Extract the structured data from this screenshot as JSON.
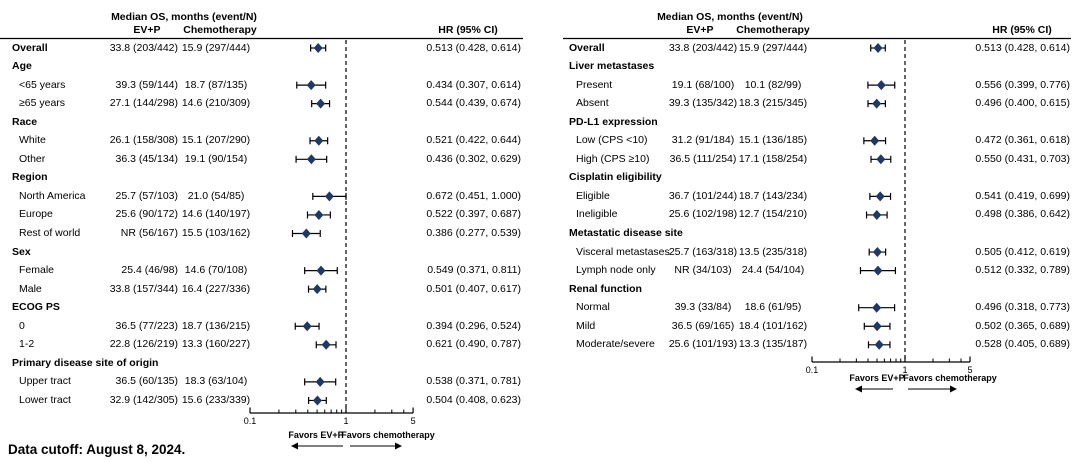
{
  "footer": {
    "data_cutoff": "Data cutoff: August 8, 2024."
  },
  "colors": {
    "marker": "#203864",
    "line": "#000000",
    "text": "#000000"
  },
  "chart_data": [
    {
      "type": "forest",
      "id": "left",
      "header": {
        "spanner": "Median OS, months (event/N)",
        "col_evp": "EV+P",
        "col_chemo": "Chemotherapy",
        "col_hr": "HR (95% CI)"
      },
      "axis": {
        "scale": "log",
        "min": 0.1,
        "max": 5,
        "ref_line": 1,
        "major_ticks": [
          0.1,
          1,
          5
        ],
        "tick_labels": [
          "0.1",
          "1",
          "5"
        ],
        "minor_ticks": [
          0.2,
          0.3,
          0.4,
          0.5,
          0.6,
          0.7,
          0.8,
          0.9,
          2,
          3,
          4
        ],
        "favors_left": "Favors EV+P",
        "favors_right": "Favors chemotherapy"
      },
      "rows": [
        {
          "kind": "overall",
          "label": "Overall",
          "evp": "33.8 (203/442)",
          "chemo": "15.9 (297/444)",
          "hr": 0.513,
          "lo": 0.428,
          "hi": 0.614,
          "hr_text": "0.513 (0.428, 0.614)"
        },
        {
          "kind": "group",
          "label": "Age"
        },
        {
          "kind": "item",
          "label": "<65 years",
          "evp": "39.3 (59/144)",
          "chemo": "18.7 (87/135)",
          "hr": 0.434,
          "lo": 0.307,
          "hi": 0.614,
          "hr_text": "0.434 (0.307, 0.614)"
        },
        {
          "kind": "item",
          "label": "≥65 years",
          "evp": "27.1 (144/298)",
          "chemo": "14.6 (210/309)",
          "hr": 0.544,
          "lo": 0.439,
          "hi": 0.674,
          "hr_text": "0.544 (0.439, 0.674)"
        },
        {
          "kind": "group",
          "label": "Race"
        },
        {
          "kind": "item",
          "label": "White",
          "evp": "26.1 (158/308)",
          "chemo": "15.1 (207/290)",
          "hr": 0.521,
          "lo": 0.422,
          "hi": 0.644,
          "hr_text": "0.521 (0.422, 0.644)"
        },
        {
          "kind": "item",
          "label": "Other",
          "evp": "36.3 (45/134)",
          "chemo": "19.1 (90/154)",
          "hr": 0.436,
          "lo": 0.302,
          "hi": 0.629,
          "hr_text": "0.436 (0.302, 0.629)"
        },
        {
          "kind": "group",
          "label": "Region"
        },
        {
          "kind": "item",
          "label": "North America",
          "evp": "25.7 (57/103)",
          "chemo": "21.0 (54/85)",
          "hr": 0.672,
          "lo": 0.451,
          "hi": 1.0,
          "hr_text": "0.672 (0.451, 1.000)"
        },
        {
          "kind": "item",
          "label": "Europe",
          "evp": "25.6 (90/172)",
          "chemo": "14.6 (140/197)",
          "hr": 0.522,
          "lo": 0.397,
          "hi": 0.687,
          "hr_text": "0.522 (0.397, 0.687)"
        },
        {
          "kind": "item",
          "label": "Rest of world",
          "evp": "NR (56/167)",
          "chemo": "15.5 (103/162)",
          "hr": 0.386,
          "lo": 0.277,
          "hi": 0.539,
          "hr_text": "0.386 (0.277, 0.539)"
        },
        {
          "kind": "group",
          "label": "Sex"
        },
        {
          "kind": "item",
          "label": "Female",
          "evp": "25.4 (46/98)",
          "chemo": "14.6 (70/108)",
          "hr": 0.549,
          "lo": 0.371,
          "hi": 0.811,
          "hr_text": "0.549 (0.371, 0.811)"
        },
        {
          "kind": "item",
          "label": "Male",
          "evp": "33.8 (157/344)",
          "chemo": "16.4 (227/336)",
          "hr": 0.501,
          "lo": 0.407,
          "hi": 0.617,
          "hr_text": "0.501 (0.407, 0.617)"
        },
        {
          "kind": "group",
          "label": "ECOG PS"
        },
        {
          "kind": "item",
          "label": "0",
          "evp": "36.5 (77/223)",
          "chemo": "18.7 (136/215)",
          "hr": 0.394,
          "lo": 0.296,
          "hi": 0.524,
          "hr_text": "0.394 (0.296, 0.524)"
        },
        {
          "kind": "item",
          "label": "1-2",
          "evp": "22.8 (126/219)",
          "chemo": "13.3 (160/227)",
          "hr": 0.621,
          "lo": 0.49,
          "hi": 0.787,
          "hr_text": "0.621 (0.490, 0.787)"
        },
        {
          "kind": "group",
          "label": "Primary disease site of origin"
        },
        {
          "kind": "item",
          "label": "Upper tract",
          "evp": "36.5 (60/135)",
          "chemo": "18.3 (63/104)",
          "hr": 0.538,
          "lo": 0.371,
          "hi": 0.781,
          "hr_text": "0.538 (0.371, 0.781)"
        },
        {
          "kind": "item",
          "label": "Lower tract",
          "evp": "32.9 (142/305)",
          "chemo": "15.6 (233/339)",
          "hr": 0.504,
          "lo": 0.408,
          "hi": 0.623,
          "hr_text": "0.504 (0.408, 0.623)"
        }
      ]
    },
    {
      "type": "forest",
      "id": "right",
      "header": {
        "spanner": "Median OS, months (event/N)",
        "col_evp": "EV+P",
        "col_chemo": "Chemotherapy",
        "col_hr": "HR (95% CI)"
      },
      "axis": {
        "scale": "log",
        "min": 0.1,
        "max": 5,
        "ref_line": 1,
        "major_ticks": [
          0.1,
          1,
          5
        ],
        "tick_labels": [
          "0.1",
          "1",
          "5"
        ],
        "minor_ticks": [
          0.2,
          0.3,
          0.4,
          0.5,
          0.6,
          0.7,
          0.8,
          0.9,
          2,
          3,
          4
        ],
        "favors_left": "Favors EV+P",
        "favors_right": "Favors chemotherapy"
      },
      "rows": [
        {
          "kind": "overall",
          "label": "Overall",
          "evp": "33.8 (203/442)",
          "chemo": "15.9 (297/444)",
          "hr": 0.513,
          "lo": 0.428,
          "hi": 0.614,
          "hr_text": "0.513 (0.428, 0.614)"
        },
        {
          "kind": "group",
          "label": "Liver metastases"
        },
        {
          "kind": "item",
          "label": "Present",
          "evp": "19.1 (68/100)",
          "chemo": "10.1 (82/99)",
          "hr": 0.556,
          "lo": 0.399,
          "hi": 0.776,
          "hr_text": "0.556 (0.399, 0.776)"
        },
        {
          "kind": "item",
          "label": "Absent",
          "evp": "39.3 (135/342)",
          "chemo": "18.3 (215/345)",
          "hr": 0.496,
          "lo": 0.4,
          "hi": 0.615,
          "hr_text": "0.496 (0.400, 0.615)"
        },
        {
          "kind": "group",
          "label": "PD-L1 expression"
        },
        {
          "kind": "item",
          "label": "Low (CPS <10)",
          "evp": "31.2 (91/184)",
          "chemo": "15.1 (136/185)",
          "hr": 0.472,
          "lo": 0.361,
          "hi": 0.618,
          "hr_text": "0.472 (0.361, 0.618)"
        },
        {
          "kind": "item",
          "label": "High (CPS ≥10)",
          "evp": "36.5 (111/254)",
          "chemo": "17.1 (158/254)",
          "hr": 0.55,
          "lo": 0.431,
          "hi": 0.703,
          "hr_text": "0.550 (0.431, 0.703)"
        },
        {
          "kind": "group",
          "label": "Cisplatin eligibility"
        },
        {
          "kind": "item",
          "label": "Eligible",
          "evp": "36.7 (101/244)",
          "chemo": "18.7 (143/234)",
          "hr": 0.541,
          "lo": 0.419,
          "hi": 0.699,
          "hr_text": "0.541 (0.419, 0.699)"
        },
        {
          "kind": "item",
          "label": "Ineligible",
          "evp": "25.6 (102/198)",
          "chemo": "12.7 (154/210)",
          "hr": 0.498,
          "lo": 0.386,
          "hi": 0.642,
          "hr_text": "0.498 (0.386, 0.642)"
        },
        {
          "kind": "group",
          "label": "Metastatic disease site"
        },
        {
          "kind": "item",
          "label": "Visceral metastases",
          "evp": "25.7 (163/318)",
          "chemo": "13.5 (235/318)",
          "hr": 0.505,
          "lo": 0.412,
          "hi": 0.619,
          "hr_text": "0.505 (0.412, 0.619)"
        },
        {
          "kind": "item",
          "label": "Lymph node only",
          "evp": "NR (34/103)",
          "chemo": "24.4 (54/104)",
          "hr": 0.512,
          "lo": 0.332,
          "hi": 0.789,
          "hr_text": "0.512 (0.332, 0.789)"
        },
        {
          "kind": "group",
          "label": "Renal function"
        },
        {
          "kind": "item",
          "label": "Normal",
          "evp": "39.3 (33/84)",
          "chemo": "18.6 (61/95)",
          "hr": 0.496,
          "lo": 0.318,
          "hi": 0.773,
          "hr_text": "0.496 (0.318, 0.773)"
        },
        {
          "kind": "item",
          "label": "Mild",
          "evp": "36.5 (69/165)",
          "chemo": "18.4 (101/162)",
          "hr": 0.502,
          "lo": 0.365,
          "hi": 0.689,
          "hr_text": "0.502 (0.365, 0.689)"
        },
        {
          "kind": "item",
          "label": "Moderate/severe",
          "evp": "25.6 (101/193)",
          "chemo": "13.3 (135/187)",
          "hr": 0.528,
          "lo": 0.405,
          "hi": 0.689,
          "hr_text": "0.528 (0.405, 0.689)"
        }
      ]
    }
  ]
}
